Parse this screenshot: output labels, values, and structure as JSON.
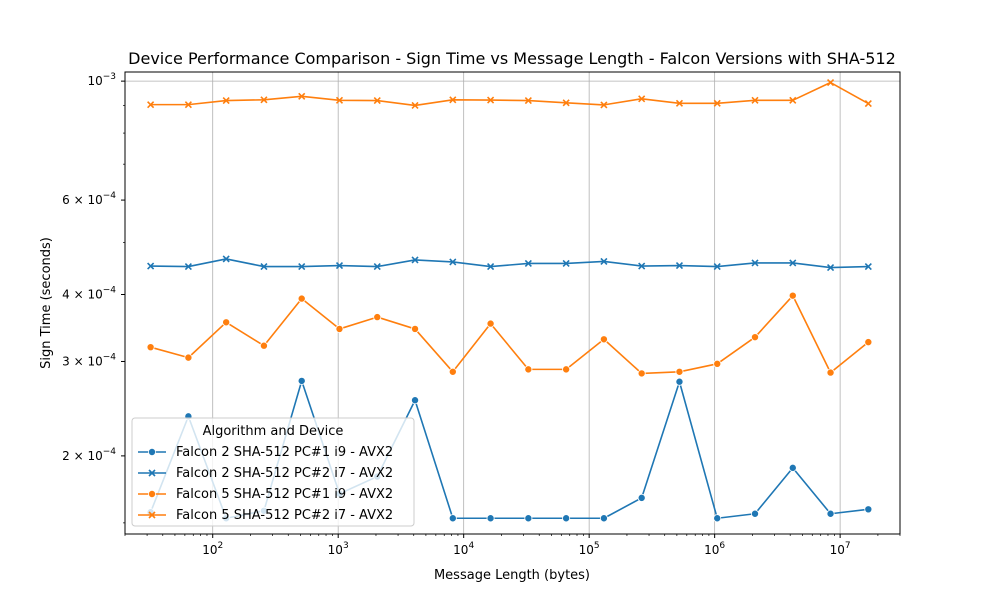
{
  "chart_data": {
    "type": "line",
    "title": "Device Performance Comparison - Sign Time vs Message Length - Falcon Versions with SHA-512",
    "xlabel": "Message Length (bytes)",
    "ylabel": "Sign Time (seconds)",
    "xscale": "log",
    "yscale": "log",
    "xlim": [
      20,
      30000000
    ],
    "ylim": [
      0.000143,
      0.00104
    ],
    "x_ticks": [
      {
        "value": 100,
        "base": "10",
        "exp": "2"
      },
      {
        "value": 1000,
        "base": "10",
        "exp": "3"
      },
      {
        "value": 10000,
        "base": "10",
        "exp": "4"
      },
      {
        "value": 100000,
        "base": "10",
        "exp": "5"
      },
      {
        "value": 1000000,
        "base": "10",
        "exp": "6"
      },
      {
        "value": 10000000,
        "base": "10",
        "exp": "7"
      }
    ],
    "y_ticks": [
      {
        "value": 0.0002,
        "mant": "2 × 10",
        "exp": "−4"
      },
      {
        "value": 0.0003,
        "mant": "3 × 10",
        "exp": "−4"
      },
      {
        "value": 0.0004,
        "mant": "4 × 10",
        "exp": "−4"
      },
      {
        "value": 0.0006,
        "mant": "6 × 10",
        "exp": "−4"
      },
      {
        "value": 0.001,
        "mant": "10",
        "exp": "−3"
      }
    ],
    "grid": "x-major",
    "legend": {
      "title": "Algorithm and Device",
      "placement": "lower-left"
    },
    "x": [
      32,
      64,
      128,
      256,
      512,
      1024,
      2048,
      4096,
      8192,
      16384,
      32768,
      65536,
      131072,
      262144,
      524288,
      1048576,
      2097152,
      4194304,
      8388608,
      16777216
    ],
    "series": [
      {
        "name": "Falcon 2 SHA-512 PC#1 i9 - AVX2",
        "color": "#1f77b4",
        "marker": "circle",
        "values": [
          0.000157,
          0.000237,
          0.000153,
          0.000158,
          0.000276,
          0.00017,
          0.000183,
          0.000254,
          0.000153,
          0.000153,
          0.000153,
          0.000153,
          0.000153,
          0.000167,
          0.000275,
          0.000153,
          0.000156,
          0.00019,
          0.000156,
          0.000159
        ]
      },
      {
        "name": "Falcon 2 SHA-512 PC#2 i7 - AVX2",
        "color": "#1f77b4",
        "marker": "x",
        "values": [
          0.000452,
          0.000451,
          0.000466,
          0.000451,
          0.000451,
          0.000453,
          0.000451,
          0.000464,
          0.00046,
          0.000451,
          0.000457,
          0.000457,
          0.000461,
          0.000452,
          0.000453,
          0.000451,
          0.000458,
          0.000458,
          0.000449,
          0.000451
        ]
      },
      {
        "name": "Falcon 5 SHA-512 PC#1 i9 - AVX2",
        "color": "#ff7f0e",
        "marker": "circle",
        "values": [
          0.000319,
          0.000305,
          0.000355,
          0.000321,
          0.000393,
          0.000345,
          0.000363,
          0.000345,
          0.000287,
          0.000353,
          0.00029,
          0.00029,
          0.00033,
          0.000285,
          0.000287,
          0.000297,
          0.000333,
          0.000398,
          0.000286,
          0.000326
        ]
      },
      {
        "name": "Falcon 5 SHA-512 PC#2 i7 - AVX2",
        "color": "#ff7f0e",
        "marker": "x",
        "values": [
          0.000904,
          0.000904,
          0.00092,
          0.000923,
          0.000937,
          0.000921,
          0.00092,
          0.000901,
          0.000923,
          0.000922,
          0.00092,
          0.000911,
          0.000903,
          0.000927,
          0.000909,
          0.000909,
          0.000921,
          0.000921,
          0.000994,
          0.000908
        ]
      }
    ]
  }
}
